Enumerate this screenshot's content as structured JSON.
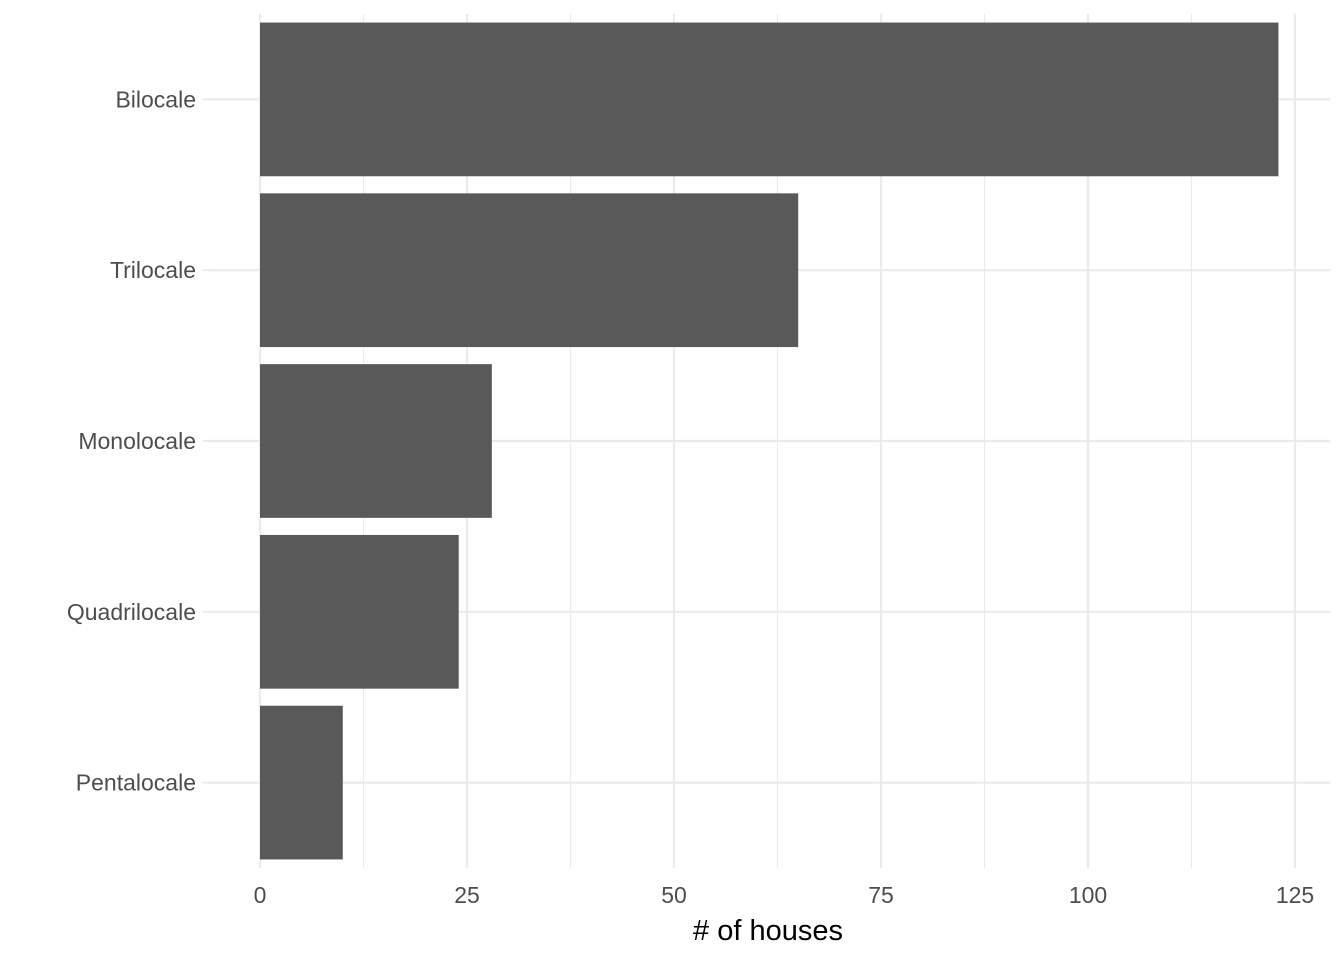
{
  "chart_data": {
    "type": "bar",
    "orientation": "horizontal",
    "title": "",
    "xlabel": "# of houses",
    "ylabel": "",
    "categories": [
      "Bilocale",
      "Trilocale",
      "Monolocale",
      "Quadrilocale",
      "Pentalocale"
    ],
    "values": [
      123,
      65,
      28,
      24,
      10
    ],
    "xlim": [
      0,
      129
    ],
    "xticks": [
      "0",
      "25",
      "50",
      "75",
      "100",
      "125"
    ],
    "xtick_values": [
      0,
      25,
      50,
      75,
      100,
      125
    ],
    "grid": true,
    "legend": "none",
    "colors": {
      "bar": "#595959",
      "grid": "#ebebeb",
      "tick_text": "#4d4d4d",
      "axis_title": "#000000",
      "background": "#ffffff"
    }
  }
}
